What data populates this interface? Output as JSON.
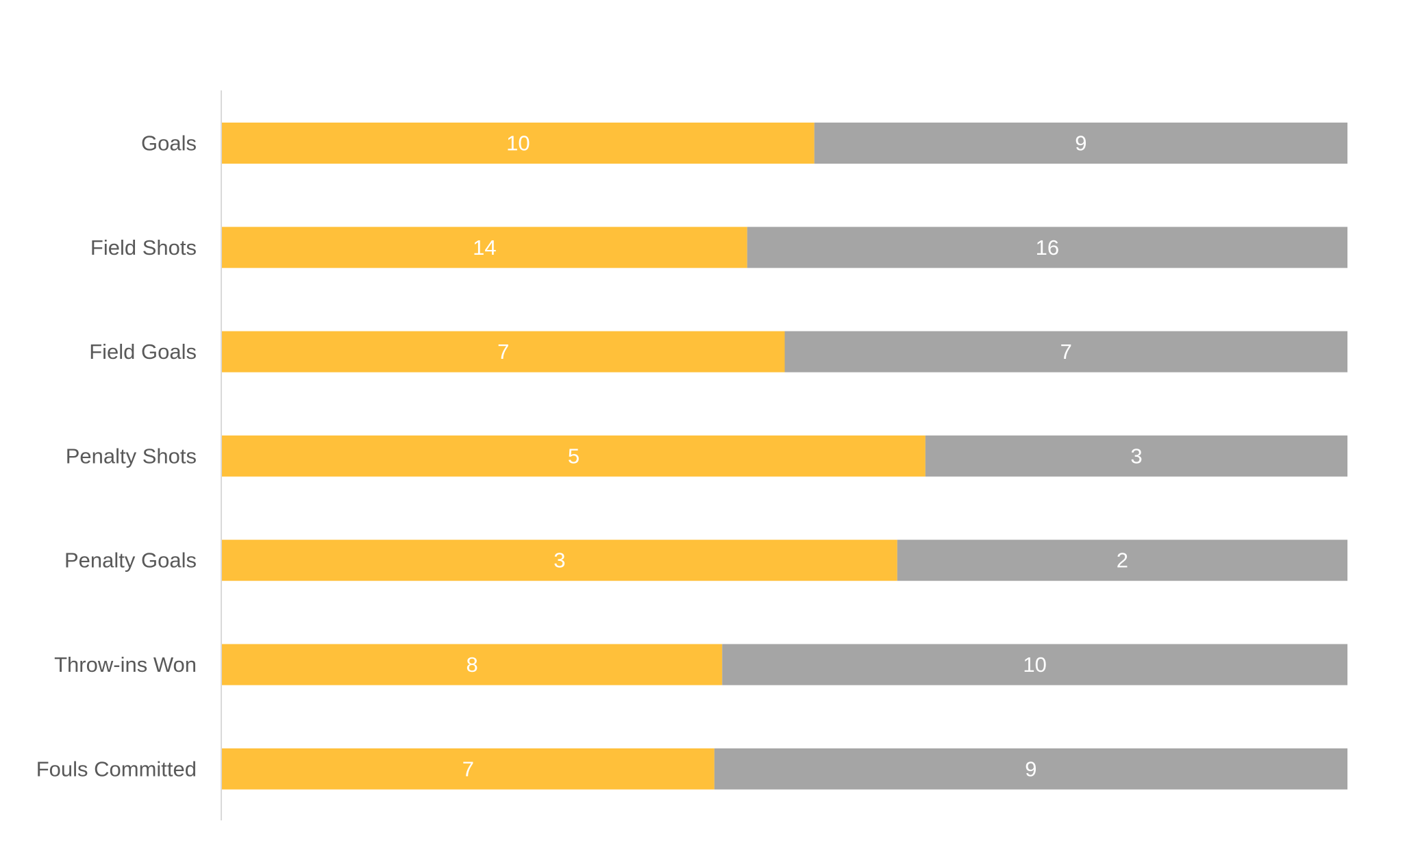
{
  "chart_data": {
    "type": "bar",
    "orientation": "horizontal",
    "stacking": "percent",
    "categories": [
      "Goals",
      "Field Shots",
      "Field Goals",
      "Penalty Shots",
      "Penalty Goals",
      "Throw-ins Won",
      "Fouls Committed"
    ],
    "series": [
      {
        "values": [
          10,
          14,
          7,
          5,
          3,
          8,
          7
        ],
        "color": "#FFC03A"
      },
      {
        "values": [
          9,
          16,
          7,
          3,
          2,
          10,
          9
        ],
        "color": "#A5A5A5"
      }
    ],
    "title": "",
    "xlabel": "",
    "ylabel": "",
    "legend": "none",
    "grid": false,
    "data_labels": true
  }
}
